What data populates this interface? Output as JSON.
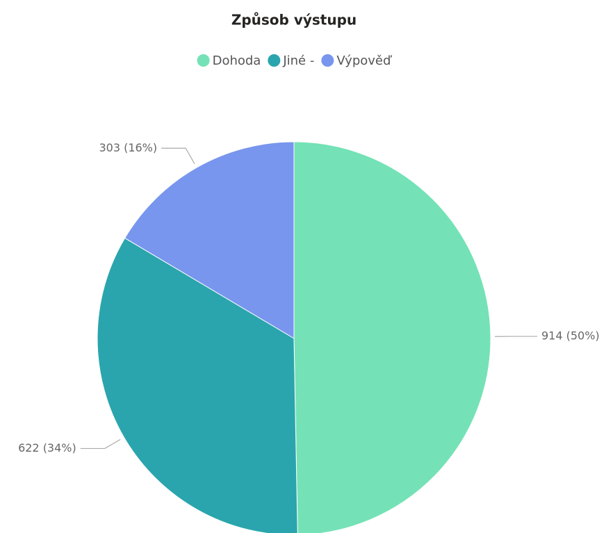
{
  "chart_data": {
    "type": "pie",
    "title": "Způsob výstupu",
    "categories": [
      "Dohoda",
      "Jiné -",
      "Výpověď"
    ],
    "values": [
      914,
      622,
      303
    ],
    "value_labels": [
      "914 (50%)",
      "622 (34%)",
      "303 (16%)"
    ],
    "colors": [
      "#74e2b6",
      "#2aa5ad",
      "#7896ee"
    ],
    "legend": "top"
  }
}
